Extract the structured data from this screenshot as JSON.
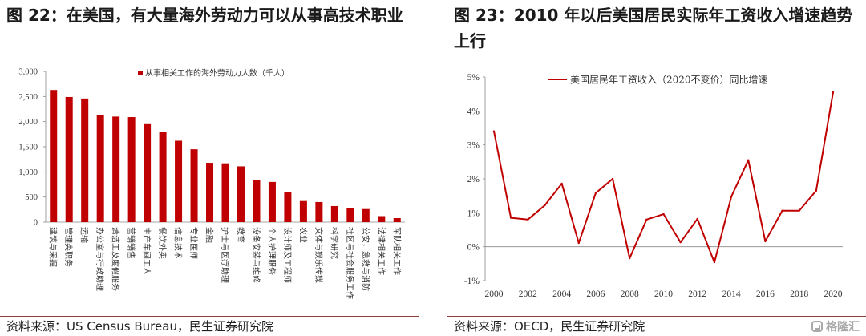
{
  "left_panel": {
    "title": "图 22：在美国，有大量海外劳动力可以从事高技术职业",
    "source": "资料来源：US Census Bureau，民生证券研究院"
  },
  "right_panel": {
    "title": "图 23：2010 年以后美国居民实际年工资收入增速趋势上行",
    "source": "资料来源：OECD，民生证券研究院"
  },
  "watermark": {
    "text": "格隆汇",
    "icon": "gelonghui-logo-icon"
  },
  "colors": {
    "accent": "#c00000",
    "rule": "#8c3b3b",
    "axis": "#8a8a8a"
  },
  "chart_data": [
    {
      "type": "bar",
      "categories": [
        "建筑与采掘",
        "管理类职务",
        "运输",
        "办公室与行政助理",
        "清洁工及度假服务",
        "营销销售",
        "生产车间工人",
        "餐饮外卖",
        "信息技术",
        "专业医师",
        "金融",
        "护士与医疗助理",
        "教育",
        "设备安装与维修",
        "个人护理服务",
        "设计师及工程师",
        "农业",
        "文体与娱乐传媒",
        "科学研究",
        "社区与社会服务工作",
        "公安，急救与消防",
        "法律相关工作",
        "军队相关工作"
      ],
      "series": [
        {
          "name": "从事相关工作的海外劳动力人数（千人）",
          "values": [
            2630,
            2490,
            2460,
            2130,
            2100,
            2090,
            1950,
            1790,
            1620,
            1450,
            1180,
            1170,
            1110,
            830,
            800,
            590,
            420,
            400,
            320,
            280,
            260,
            120,
            80
          ]
        }
      ],
      "ylim": [
        0,
        3000
      ],
      "yticks": [
        0,
        500,
        1000,
        1500,
        2000,
        2500,
        3000
      ],
      "ytick_labels": [
        "0",
        "500",
        "1,000",
        "1,500",
        "2,000",
        "2,500",
        "3,000"
      ],
      "legend": "top-center",
      "grid": false
    },
    {
      "type": "line",
      "x": [
        2000,
        2001,
        2002,
        2003,
        2004,
        2005,
        2006,
        2007,
        2008,
        2009,
        2010,
        2011,
        2012,
        2013,
        2014,
        2015,
        2016,
        2017,
        2018,
        2019,
        2020
      ],
      "series": [
        {
          "name": "美国居民年工资收入（2020不变价）同比增速",
          "values": [
            3.4,
            0.85,
            0.8,
            1.22,
            1.86,
            0.11,
            1.58,
            2.0,
            -0.34,
            0.8,
            0.96,
            0.13,
            0.82,
            -0.46,
            1.48,
            2.55,
            0.16,
            1.06,
            1.06,
            1.65,
            4.55
          ]
        }
      ],
      "xticks": [
        2000,
        2002,
        2004,
        2006,
        2008,
        2010,
        2012,
        2014,
        2016,
        2018,
        2020
      ],
      "xtick_labels": [
        "2000",
        "2002",
        "2004",
        "2006",
        "2008",
        "2010",
        "2012",
        "2014",
        "2016",
        "2018",
        "2020"
      ],
      "ylim": [
        -1,
        5
      ],
      "yticks": [
        -1,
        0,
        1,
        2,
        3,
        4,
        5
      ],
      "ytick_labels": [
        "-1%",
        "0%",
        "1%",
        "2%",
        "3%",
        "4%",
        "5%"
      ],
      "legend": "top-center",
      "grid": false
    }
  ]
}
